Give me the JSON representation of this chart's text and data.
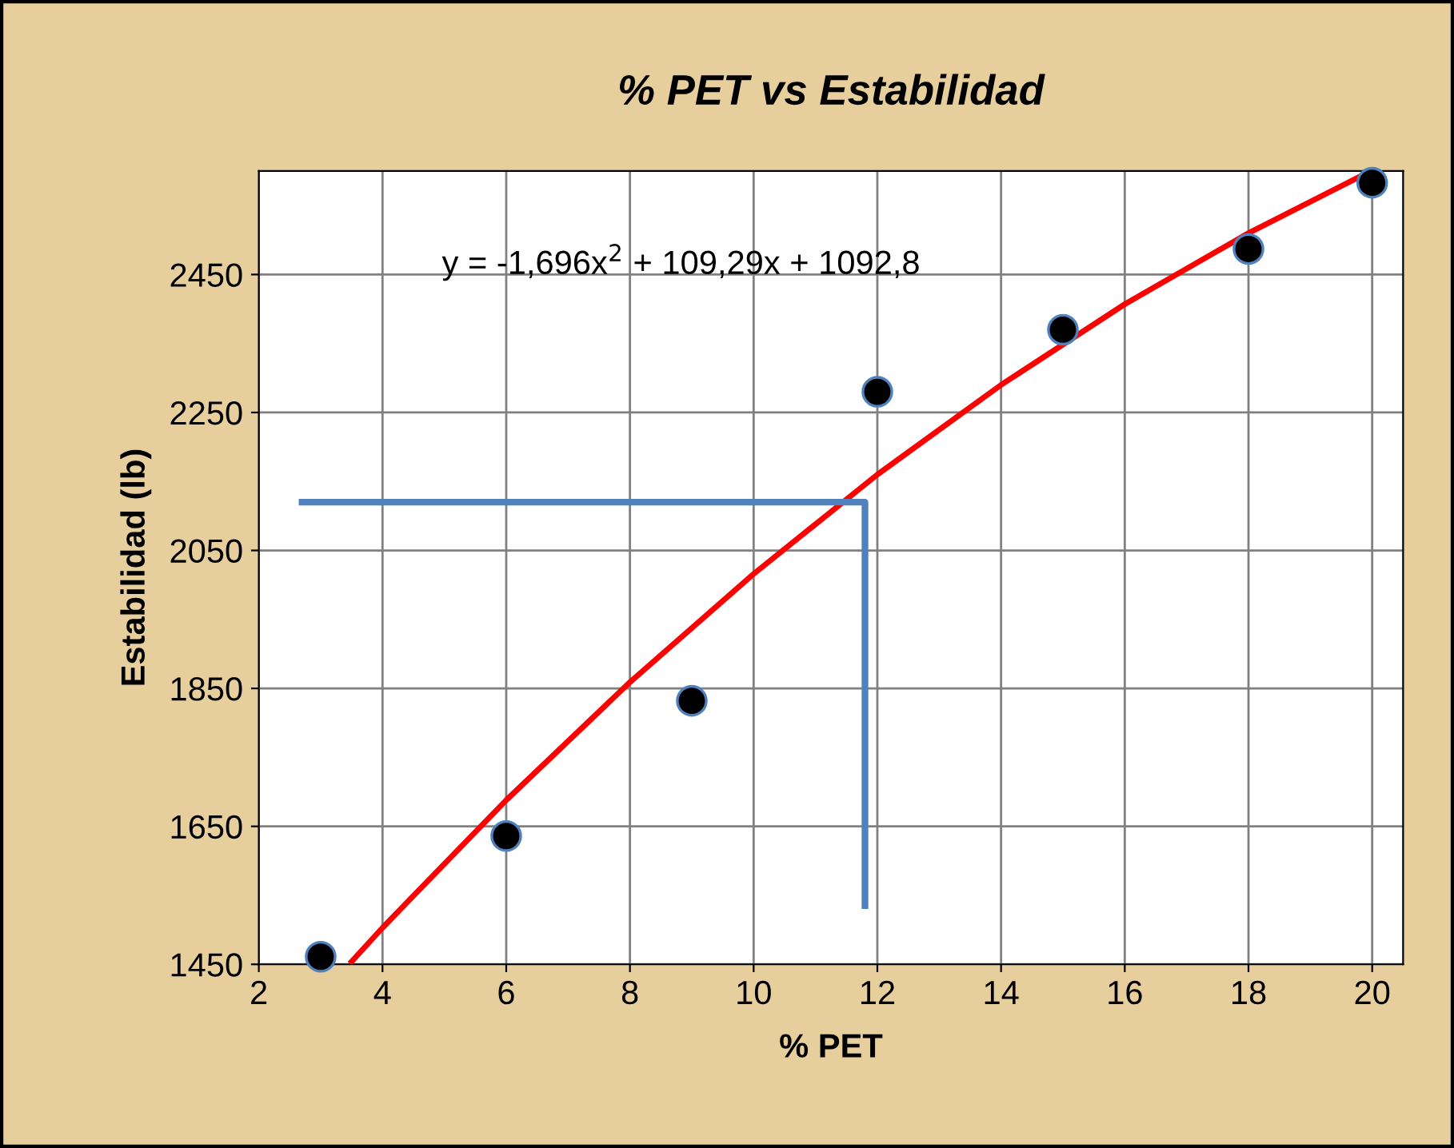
{
  "chart_data": {
    "type": "scatter",
    "title": "% PET vs Estabilidad",
    "xlabel": "% PET",
    "ylabel": "Estabilidad (lb)",
    "annotations": [
      "y = -1,696x$^{2}$ + 109,29x + 1092,8"
    ],
    "series": [
      {
        "color": "#000000",
        "marker": "circle",
        "x": [
          3,
          6,
          9,
          12,
          15,
          18,
          20
        ],
        "values": [
          1461,
          1636,
          1832,
          2280,
          2370,
          2487,
          2583
        ]
      },
      {
        "type": "line",
        "color": "#ff0000",
        "marker": "none",
        "x": [
          3.5,
          4,
          6,
          8,
          10,
          12,
          14,
          16,
          18,
          19.8
        ],
        "values": [
          1454,
          1503,
          1688,
          1859,
          2016,
          2160,
          2290,
          2407,
          2510,
          2592
        ]
      },
      {
        "type": "line",
        "color": "#4f81bd",
        "marker": "none",
        "x": [
          2.7,
          11.8,
          11.8
        ],
        "values": [
          2120,
          2120,
          1535
        ]
      }
    ],
    "xlim": [
      2,
      20.5
    ],
    "xticks": [
      2,
      4,
      6,
      8,
      10,
      12,
      14,
      16,
      18,
      20
    ],
    "ylim": [
      1450,
      2600
    ],
    "yticks": [
      1450,
      1650,
      1850,
      2050,
      2250,
      2450
    ],
    "grid": true,
    "legend": false
  }
}
